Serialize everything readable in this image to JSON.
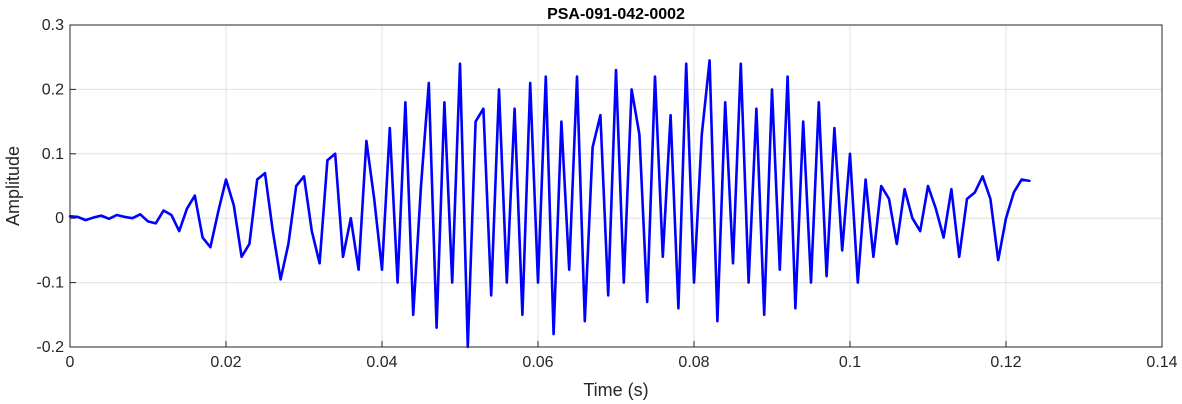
{
  "chart_data": {
    "type": "line",
    "title": "PSA-091-042-0002",
    "xlabel": "Time (s)",
    "ylabel": "Amplitude",
    "xlim": [
      0,
      0.14
    ],
    "ylim": [
      -0.2,
      0.3
    ],
    "xticks": [
      0,
      0.02,
      0.04,
      0.06,
      0.08,
      0.1,
      0.12,
      0.14
    ],
    "xtick_labels": [
      "0",
      "0.02",
      "0.04",
      "0.06",
      "0.08",
      "0.1",
      "0.12",
      "0.14"
    ],
    "yticks": [
      -0.2,
      -0.1,
      0,
      0.1,
      0.2,
      0.3
    ],
    "ytick_labels": [
      "-0.2",
      "-0.1",
      "0",
      "0.1",
      "0.2",
      "0.3"
    ],
    "grid": true,
    "line_color": "#0000ff",
    "series": [
      {
        "x": [
          0,
          0.001,
          0.002,
          0.003,
          0.004,
          0.005,
          0.006,
          0.007,
          0.008,
          0.009,
          0.01,
          0.011,
          0.012,
          0.013,
          0.014,
          0.015,
          0.016,
          0.017,
          0.018,
          0.019,
          0.02,
          0.021,
          0.022,
          0.023,
          0.024,
          0.025,
          0.026,
          0.027,
          0.028,
          0.029,
          0.03,
          0.031,
          0.032,
          0.033,
          0.034,
          0.035,
          0.036,
          0.037,
          0.038,
          0.039,
          0.04,
          0.041,
          0.042,
          0.043,
          0.044,
          0.045,
          0.046,
          0.047,
          0.048,
          0.049,
          0.05,
          0.051,
          0.052,
          0.053,
          0.054,
          0.055,
          0.056,
          0.057,
          0.058,
          0.059,
          0.06,
          0.061,
          0.062,
          0.063,
          0.064,
          0.065,
          0.066,
          0.067,
          0.068,
          0.069,
          0.07,
          0.071,
          0.072,
          0.073,
          0.074,
          0.075,
          0.076,
          0.077,
          0.078,
          0.079,
          0.08,
          0.081,
          0.082,
          0.083,
          0.084,
          0.085,
          0.086,
          0.087,
          0.088,
          0.089,
          0.09,
          0.091,
          0.092,
          0.093,
          0.094,
          0.095,
          0.096,
          0.097,
          0.098,
          0.099,
          0.1,
          0.101,
          0.102,
          0.103,
          0.104,
          0.105,
          0.106,
          0.107,
          0.108,
          0.109,
          0.11,
          0.111,
          0.112,
          0.113,
          0.114,
          0.115,
          0.116,
          0.117,
          0.118,
          0.119,
          0.12,
          0.121,
          0.122,
          0.123
        ],
        "y": [
          0.003,
          0.002,
          -0.003,
          0.001,
          0.004,
          -0.001,
          0.005,
          0.002,
          0.0,
          0.006,
          -0.005,
          -0.008,
          0.012,
          0.005,
          -0.02,
          0.015,
          0.035,
          -0.03,
          -0.045,
          0.01,
          0.06,
          0.02,
          -0.06,
          -0.04,
          0.06,
          0.07,
          -0.02,
          -0.095,
          -0.04,
          0.05,
          0.065,
          -0.02,
          -0.07,
          0.09,
          0.1,
          -0.06,
          0.0,
          -0.08,
          0.12,
          0.03,
          -0.08,
          0.14,
          -0.1,
          0.18,
          -0.15,
          0.05,
          0.21,
          -0.17,
          0.18,
          -0.1,
          0.24,
          -0.2,
          0.15,
          0.17,
          -0.12,
          0.2,
          -0.1,
          0.17,
          -0.15,
          0.21,
          -0.1,
          0.22,
          -0.18,
          0.15,
          -0.08,
          0.22,
          -0.16,
          0.11,
          0.16,
          -0.12,
          0.23,
          -0.1,
          0.2,
          0.13,
          -0.13,
          0.22,
          -0.06,
          0.16,
          -0.14,
          0.24,
          -0.1,
          0.13,
          0.245,
          -0.16,
          0.18,
          -0.07,
          0.24,
          -0.1,
          0.17,
          -0.15,
          0.2,
          -0.08,
          0.22,
          -0.14,
          0.15,
          -0.1,
          0.18,
          -0.09,
          0.14,
          -0.05,
          0.1,
          -0.1,
          0.06,
          -0.06,
          0.05,
          0.03,
          -0.04,
          0.045,
          0.0,
          -0.02,
          0.05,
          0.015,
          -0.03,
          0.045,
          -0.06,
          0.03,
          0.04,
          0.065,
          0.03,
          -0.065,
          0.0,
          0.04,
          0.06,
          0.058
        ]
      }
    ]
  }
}
